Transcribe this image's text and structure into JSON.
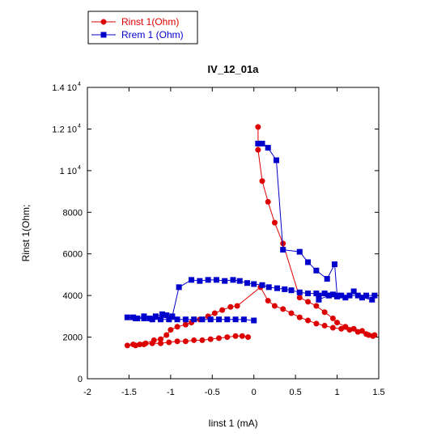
{
  "chart_data": {
    "type": "line",
    "title": "IV_12_01a",
    "xlabel": "Iinst 1 (mA)",
    "ylabel": "Rinst 1(Ohm;",
    "xlim": [
      -2,
      1.5
    ],
    "ylim": [
      0,
      14000
    ],
    "x_ticks": [
      {
        "value": -2,
        "label": "-2"
      },
      {
        "value": -1.5,
        "label": "-1.5"
      },
      {
        "value": -1,
        "label": "-1"
      },
      {
        "value": -0.5,
        "label": "-0.5"
      },
      {
        "value": 0,
        "label": "0"
      },
      {
        "value": 0.5,
        "label": "0.5"
      },
      {
        "value": 1,
        "label": "1"
      },
      {
        "value": 1.5,
        "label": "1.5"
      }
    ],
    "y_ticks": [
      {
        "value": 0,
        "label": "0",
        "exp": ""
      },
      {
        "value": 2000,
        "label": "2000",
        "exp": ""
      },
      {
        "value": 4000,
        "label": "4000",
        "exp": ""
      },
      {
        "value": 6000,
        "label": "6000",
        "exp": ""
      },
      {
        "value": 8000,
        "label": "8000",
        "exp": ""
      },
      {
        "value": 10000,
        "label": "1 10",
        "exp": "4"
      },
      {
        "value": 12000,
        "label": "1.2 10",
        "exp": "4"
      },
      {
        "value": 14000,
        "label": "1.4 10",
        "exp": "4"
      }
    ],
    "grid": false,
    "legend_position": "top-left, outside plot",
    "series": [
      {
        "name": "Rinst 1(Ohm)",
        "color": "#dd0000",
        "marker": "circle",
        "points": [
          [
            0.05,
            12100
          ],
          [
            0.05,
            11000
          ],
          [
            0.1,
            9500
          ],
          [
            0.17,
            8500
          ],
          [
            0.25,
            7500
          ],
          [
            0.35,
            6500
          ],
          [
            0.55,
            3900
          ],
          [
            0.65,
            3700
          ],
          [
            0.75,
            3500
          ],
          [
            0.85,
            3200
          ],
          [
            0.95,
            2900
          ],
          [
            1.0,
            2700
          ],
          [
            1.1,
            2500
          ],
          [
            1.2,
            2400
          ],
          [
            1.3,
            2300
          ],
          [
            1.38,
            2100
          ],
          [
            1.43,
            2050
          ],
          [
            1.45,
            2100
          ],
          [
            1.35,
            2150
          ],
          [
            1.25,
            2250
          ],
          [
            1.15,
            2350
          ],
          [
            1.05,
            2400
          ],
          [
            0.95,
            2450
          ],
          [
            0.85,
            2550
          ],
          [
            0.75,
            2650
          ],
          [
            0.65,
            2800
          ],
          [
            0.55,
            2950
          ],
          [
            0.45,
            3150
          ],
          [
            0.35,
            3350
          ],
          [
            0.25,
            3500
          ],
          [
            0.17,
            3750
          ],
          [
            0.08,
            4400
          ],
          [
            -0.2,
            3500
          ],
          [
            -0.28,
            3450
          ],
          [
            -0.38,
            3300
          ],
          [
            -0.47,
            3150
          ],
          [
            -0.55,
            3000
          ],
          [
            -0.65,
            2850
          ],
          [
            -0.75,
            2700
          ],
          [
            -0.82,
            2600
          ],
          [
            -0.92,
            2500
          ],
          [
            -1.0,
            2350
          ],
          [
            -1.05,
            2100
          ],
          [
            -1.12,
            1900
          ],
          [
            -1.2,
            1850
          ],
          [
            -1.3,
            1700
          ],
          [
            -1.37,
            1650
          ],
          [
            -1.45,
            1650
          ],
          [
            -1.52,
            1600
          ],
          [
            -1.42,
            1600
          ],
          [
            -1.32,
            1650
          ],
          [
            -1.22,
            1700
          ],
          [
            -1.12,
            1700
          ],
          [
            -1.02,
            1750
          ],
          [
            -0.92,
            1800
          ],
          [
            -0.82,
            1800
          ],
          [
            -0.72,
            1850
          ],
          [
            -0.62,
            1850
          ],
          [
            -0.52,
            1900
          ],
          [
            -0.42,
            1950
          ],
          [
            -0.32,
            2000
          ],
          [
            -0.22,
            2050
          ],
          [
            -0.14,
            2050
          ],
          [
            -0.07,
            2000
          ]
        ]
      },
      {
        "name": "Rrem 1 (Ohm)",
        "color": "#0000cc",
        "marker": "square",
        "points": [
          [
            0.05,
            11300
          ],
          [
            0.1,
            11300
          ],
          [
            0.17,
            11100
          ],
          [
            0.27,
            10500
          ],
          [
            0.35,
            6200
          ],
          [
            0.55,
            6100
          ],
          [
            0.65,
            5600
          ],
          [
            0.75,
            5200
          ],
          [
            0.88,
            4800
          ],
          [
            0.97,
            5500
          ],
          [
            1.0,
            4000
          ],
          [
            0.9,
            4000
          ],
          [
            0.78,
            3800
          ],
          [
            0.78,
            4000
          ],
          [
            0.9,
            4000
          ],
          [
            1.0,
            3950
          ],
          [
            1.1,
            3900
          ],
          [
            1.2,
            4200
          ],
          [
            1.3,
            3900
          ],
          [
            1.42,
            3800
          ],
          [
            1.45,
            4000
          ],
          [
            1.35,
            4000
          ],
          [
            1.25,
            4000
          ],
          [
            1.15,
            4000
          ],
          [
            1.05,
            4000
          ],
          [
            0.95,
            4050
          ],
          [
            0.85,
            4100
          ],
          [
            0.75,
            4100
          ],
          [
            0.65,
            4100
          ],
          [
            0.55,
            4150
          ],
          [
            0.45,
            4250
          ],
          [
            0.37,
            4300
          ],
          [
            0.28,
            4350
          ],
          [
            0.18,
            4400
          ],
          [
            0.1,
            4500
          ],
          [
            0.0,
            4550
          ],
          [
            -0.08,
            4600
          ],
          [
            -0.17,
            4700
          ],
          [
            -0.25,
            4750
          ],
          [
            -0.35,
            4700
          ],
          [
            -0.45,
            4750
          ],
          [
            -0.55,
            4750
          ],
          [
            -0.65,
            4700
          ],
          [
            -0.75,
            4750
          ],
          [
            -0.9,
            4400
          ],
          [
            -0.98,
            3000
          ],
          [
            -1.05,
            3050
          ],
          [
            -1.1,
            3100
          ],
          [
            -1.18,
            3000
          ],
          [
            -1.25,
            2900
          ],
          [
            -1.32,
            3000
          ],
          [
            -1.4,
            2900
          ],
          [
            -1.45,
            2950
          ],
          [
            -1.52,
            2950
          ],
          [
            -1.42,
            2900
          ],
          [
            -1.32,
            2900
          ],
          [
            -1.22,
            2850
          ],
          [
            -1.12,
            2850
          ],
          [
            -1.02,
            2850
          ],
          [
            -0.92,
            2850
          ],
          [
            -0.82,
            2850
          ],
          [
            -0.72,
            2850
          ],
          [
            -0.62,
            2850
          ],
          [
            -0.52,
            2850
          ],
          [
            -0.42,
            2850
          ],
          [
            -0.32,
            2850
          ],
          [
            -0.22,
            2850
          ],
          [
            -0.12,
            2850
          ],
          [
            0.0,
            2800
          ]
        ]
      }
    ]
  }
}
